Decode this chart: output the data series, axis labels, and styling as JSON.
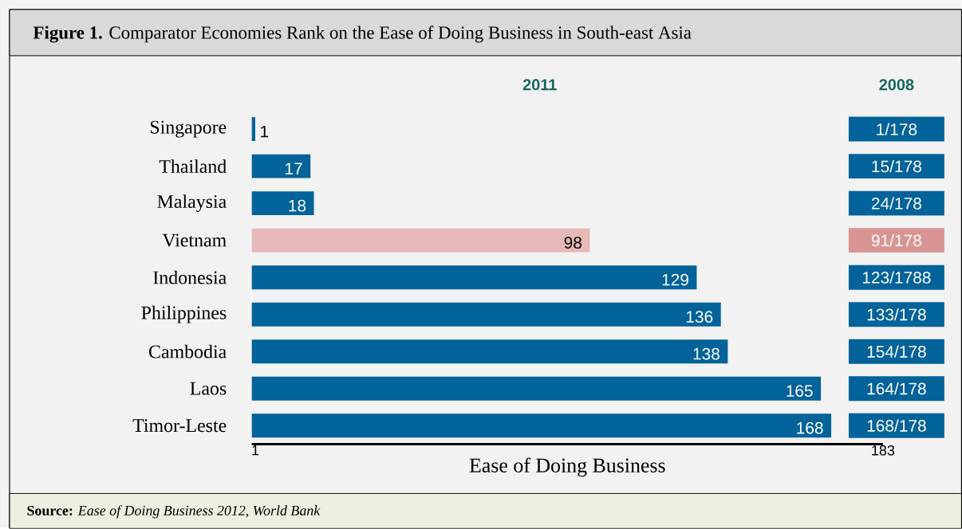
{
  "chart_data": [
    {
      "type": "bar",
      "orientation": "horizontal",
      "title": "**Figure 1.** Comparator Economies Rank on the Ease of Doing Business in South-east Asia",
      "xlabel": "Ease of Doing Business",
      "categories": [
        "Singapore",
        "Thailand",
        "Malaysia",
        "Vietnam",
        "Indonesia",
        "Philippines",
        "Cambodia",
        "Laos",
        "Timor-Leste"
      ],
      "series": [
        {
          "name": "2011",
          "values": [
            1,
            17,
            18,
            98,
            129,
            136,
            138,
            165,
            168
          ],
          "colors": [
            "#02639a",
            "#02639a",
            "#02639a",
            "#e6b8b7",
            "#02639a",
            "#02639a",
            "#02639a",
            "#02639a",
            "#02639a"
          ]
        }
      ],
      "xlim": [
        0,
        183
      ],
      "xticks": [
        1,
        183
      ],
      "data_labels": true,
      "annotations": [
        "**Source:** *Ease of Doing Business 2012, World Bank*"
      ]
    },
    {
      "type": "other",
      "title": "2008",
      "value_labels": [
        "1/178",
        "15/178",
        "24/178",
        "91/178",
        "123/1788",
        "133/178",
        "154/178",
        "164/178",
        "168/178"
      ],
      "colors": [
        "#02639a",
        "#02639a",
        "#02639a",
        "#d99594",
        "#02639a",
        "#02639a",
        "#02639a",
        "#02639a",
        "#02639a"
      ]
    }
  ]
}
